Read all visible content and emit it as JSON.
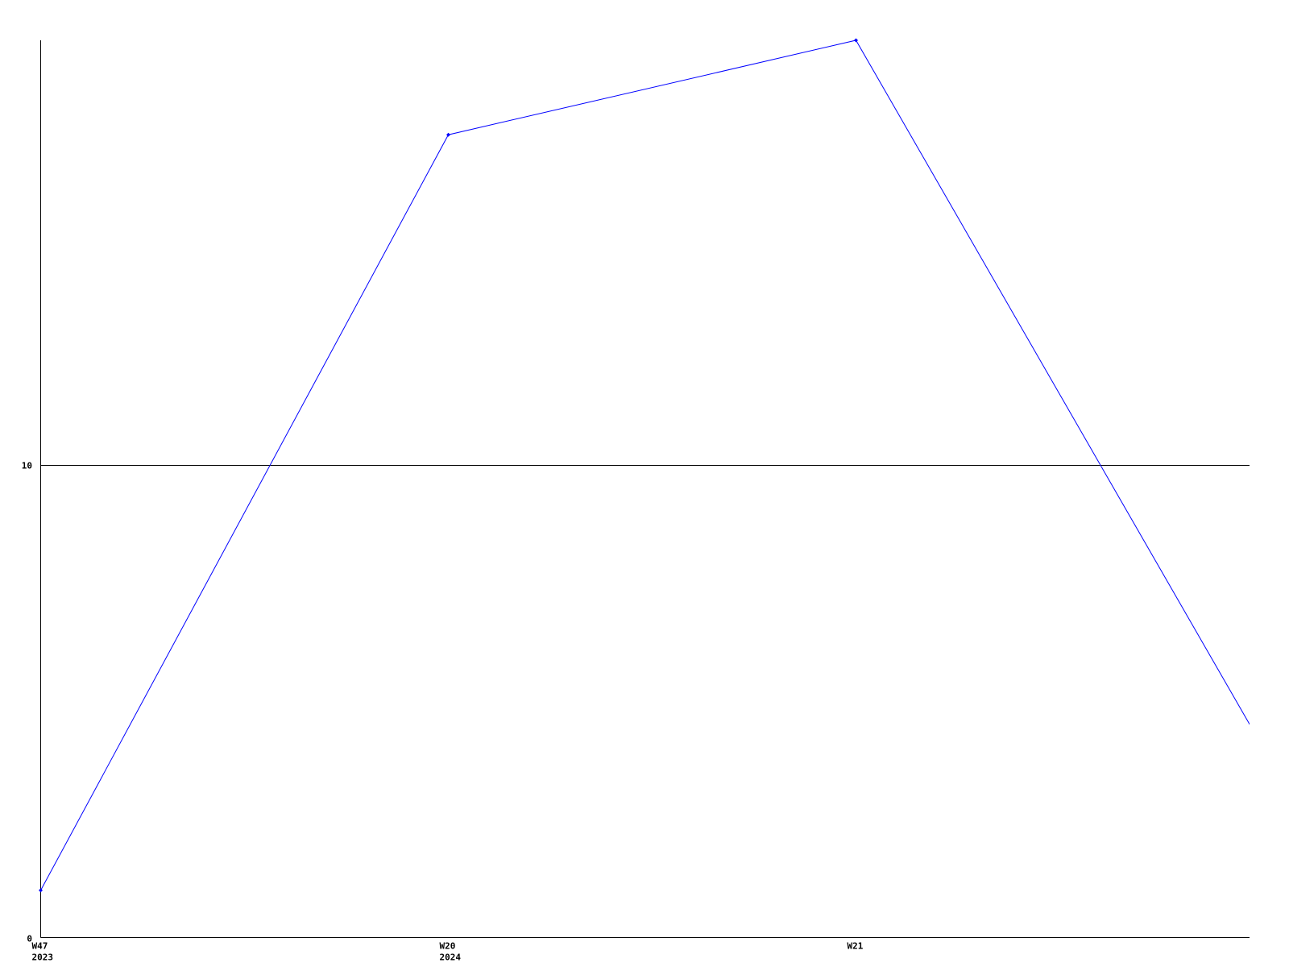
{
  "chart_data": {
    "type": "line",
    "title": "",
    "xlabel": "",
    "ylabel": "",
    "categories": [
      {
        "week": "W47",
        "year": "2023"
      },
      {
        "week": "W20",
        "year": "2024"
      },
      {
        "week": "W21",
        "year": ""
      },
      {
        "week": "",
        "year": ""
      }
    ],
    "series": [
      {
        "values": [
          1,
          17,
          19,
          4
        ],
        "color": "#0000ff"
      }
    ],
    "ylim": [
      0,
      19
    ],
    "yticks": [
      {
        "value": 0,
        "label": "0"
      },
      {
        "value": 10,
        "label": "10"
      }
    ],
    "grid": "horizontal line at 10",
    "legend": "none",
    "axis_color": "#000000"
  }
}
